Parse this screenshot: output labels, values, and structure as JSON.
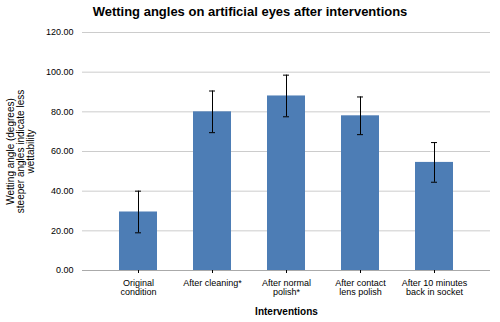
{
  "chart_data": {
    "type": "bar",
    "title": "Wetting angles on artificial eyes after interventions",
    "xlabel": "Interventions",
    "ylabel": "Wetting angle (degrees)\nsteeper angles indicate less\nwettability",
    "categories": [
      "Original\ncondition",
      "After cleaning*",
      "After normal\npolish*",
      "After contact\nlens polish",
      "After 10 minutes\nback in socket"
    ],
    "values": [
      29.5,
      80.0,
      88.0,
      78.0,
      54.5
    ],
    "errors_pos": [
      10.5,
      10.5,
      10.5,
      9.5,
      10.0
    ],
    "errors_neg": [
      10.5,
      10.5,
      10.5,
      9.5,
      10.0
    ],
    "color": "#4d7db5",
    "ylim": [
      0,
      120
    ],
    "yticks": [
      {
        "value": 0,
        "label": "0.00"
      },
      {
        "value": 20,
        "label": "20.00"
      },
      {
        "value": 40,
        "label": "40.00"
      },
      {
        "value": 60,
        "label": "60.00"
      },
      {
        "value": 80,
        "label": "80.00"
      },
      {
        "value": 100,
        "label": "100.00"
      },
      {
        "value": 120,
        "label": "120.00"
      }
    ],
    "grid": true
  }
}
